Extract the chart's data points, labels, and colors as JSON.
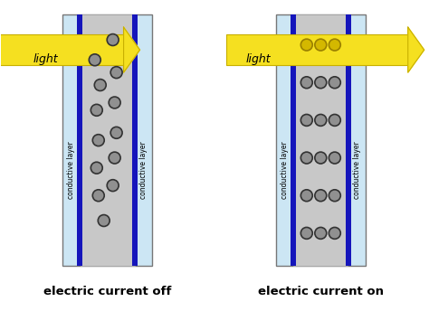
{
  "bg_color": "#ffffff",
  "panel_bg": "#cce6f4",
  "cell_bg": "#c8c8c8",
  "blue_line_color": "#1515bb",
  "particle_color_off": "#909090",
  "particle_edge_off": "#333333",
  "particle_color_on_beam": "#d4b800",
  "particle_edge_on_beam": "#9a8000",
  "particle_color_on": "#909090",
  "particle_edge_on": "#333333",
  "arrow_color": "#f5e020",
  "arrow_edge": "#c8b000",
  "text_color": "#000000",
  "title_off": "electric current off",
  "title_on": "electric current on",
  "label_light": "light",
  "label_conductive": "conductive layer",
  "fig_w": 4.74,
  "fig_h": 3.44,
  "dpi": 100
}
